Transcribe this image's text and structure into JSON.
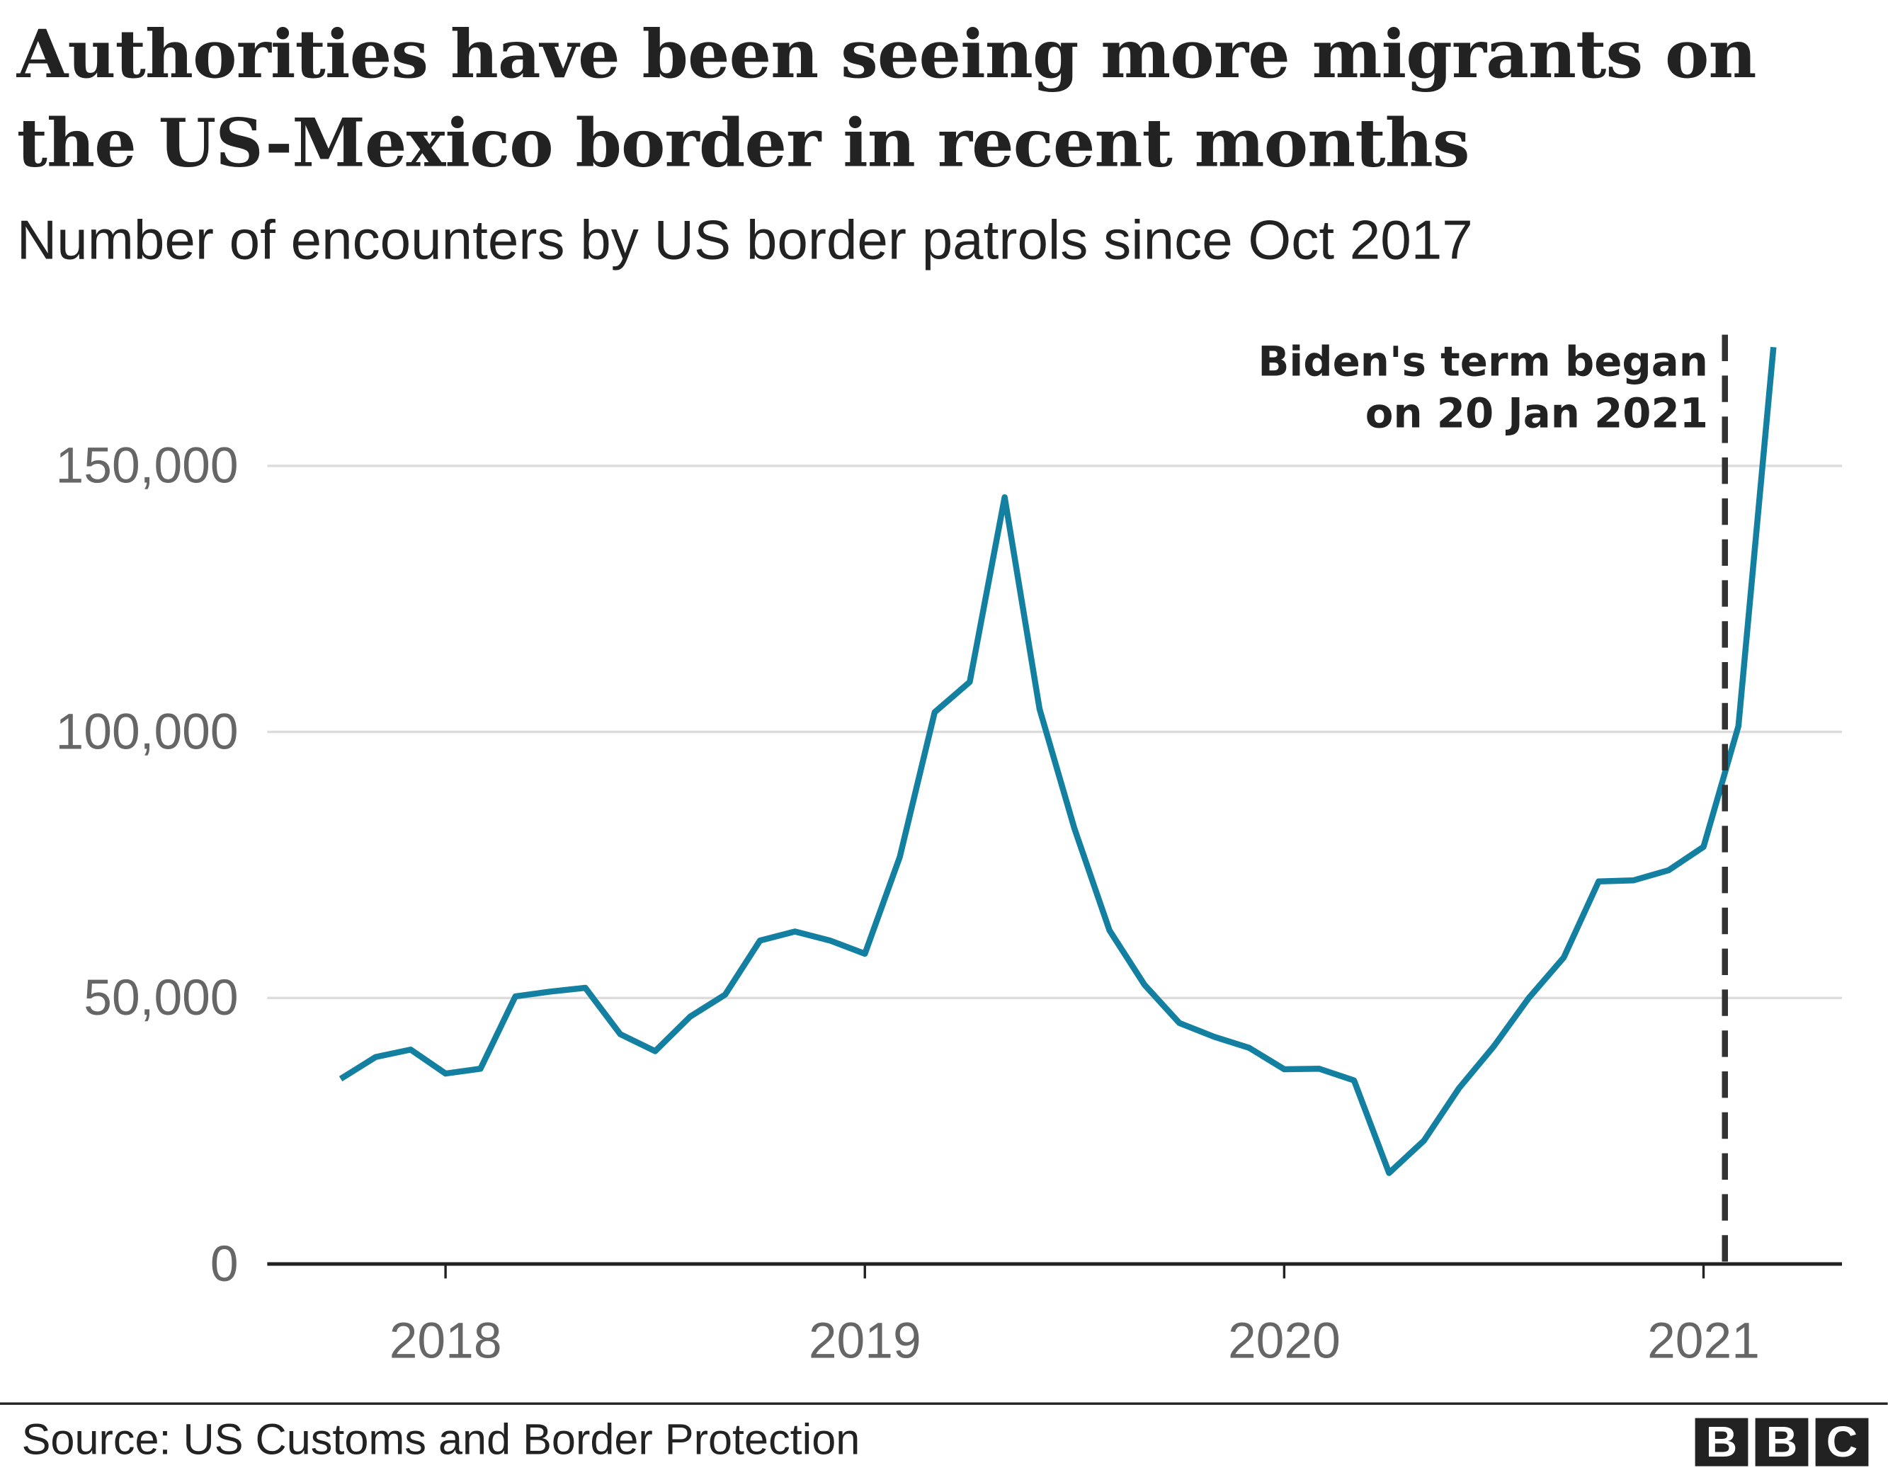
{
  "title": "Authorities have been seeing more migrants on the US-Mexico border in recent months",
  "subtitle": "Number of encounters by US border patrols since Oct 2017",
  "source": "Source: US Customs and Border Protection",
  "logo": "BBC",
  "chart_data": {
    "type": "line",
    "title": "Authorities have been seeing more migrants on the US-Mexico border in recent months",
    "subtitle": "Number of encounters by US border patrols since Oct 2017",
    "xlabel": "",
    "ylabel": "",
    "ylim": [
      0,
      175000
    ],
    "y_ticks": [
      0,
      50000,
      100000,
      150000
    ],
    "y_tick_labels": [
      "0",
      "50,000",
      "100,000",
      "150,000"
    ],
    "x_ticks": [
      "2018-01",
      "2019-01",
      "2020-01",
      "2021-01"
    ],
    "x_tick_labels": [
      "2018",
      "2019",
      "2020",
      "2021"
    ],
    "grid": "horizontal",
    "line_color": "#1380a1",
    "x": [
      "2017-10",
      "2017-11",
      "2017-12",
      "2018-01",
      "2018-02",
      "2018-03",
      "2018-04",
      "2018-05",
      "2018-06",
      "2018-07",
      "2018-08",
      "2018-09",
      "2018-10",
      "2018-11",
      "2018-12",
      "2019-01",
      "2019-02",
      "2019-03",
      "2019-04",
      "2019-05",
      "2019-06",
      "2019-07",
      "2019-08",
      "2019-09",
      "2019-10",
      "2019-11",
      "2019-12",
      "2020-01",
      "2020-02",
      "2020-03",
      "2020-04",
      "2020-05",
      "2020-06",
      "2020-07",
      "2020-08",
      "2020-09",
      "2020-10",
      "2020-11",
      "2020-12",
      "2021-01",
      "2021-02",
      "2021-03"
    ],
    "values": [
      34800,
      38900,
      40300,
      35800,
      36700,
      50300,
      51200,
      51900,
      43200,
      40000,
      46500,
      50600,
      60800,
      62500,
      60800,
      58300,
      76500,
      103700,
      109400,
      144100,
      104300,
      81800,
      62700,
      52500,
      45300,
      42700,
      40600,
      36600,
      36700,
      34500,
      17100,
      23200,
      33000,
      40900,
      50000,
      57600,
      71900,
      72100,
      74000,
      78400,
      101100,
      172300
    ],
    "annotation": {
      "date": "2021-01-20",
      "text_lines": [
        "Biden's term began",
        "on 20 Jan 2021"
      ],
      "style": "dashed"
    }
  }
}
